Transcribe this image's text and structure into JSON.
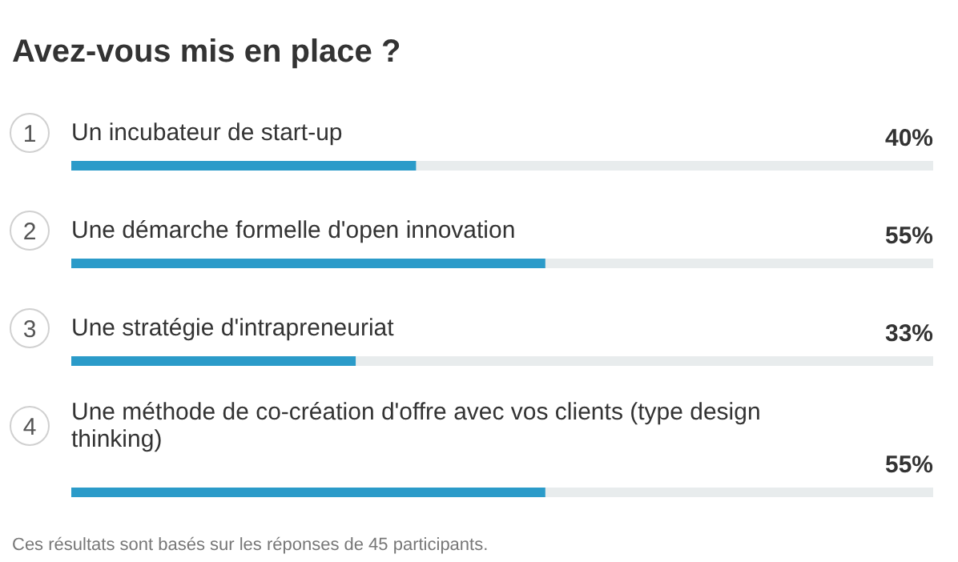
{
  "chart_data": {
    "type": "bar",
    "orientation": "horizontal",
    "title": "Avez-vous mis en place ?",
    "categories": [
      "Un incubateur de start-up",
      "Une démarche formelle d'open innovation",
      "Une stratégie d'intrapreneuriat",
      "Une méthode de co-création d'offre avec vos clients (type design thinking)"
    ],
    "values": [
      40,
      55,
      33,
      55
    ],
    "value_labels": [
      "40%",
      "55%",
      "33%",
      "55%"
    ],
    "color": "#2b9bc9",
    "xlim": [
      0,
      100
    ],
    "tick_labels": false,
    "grid": false,
    "annotations": [
      "1",
      "2",
      "3",
      "4",
      "Ces résultats sont basés sur les réponses de 45 participants."
    ]
  }
}
